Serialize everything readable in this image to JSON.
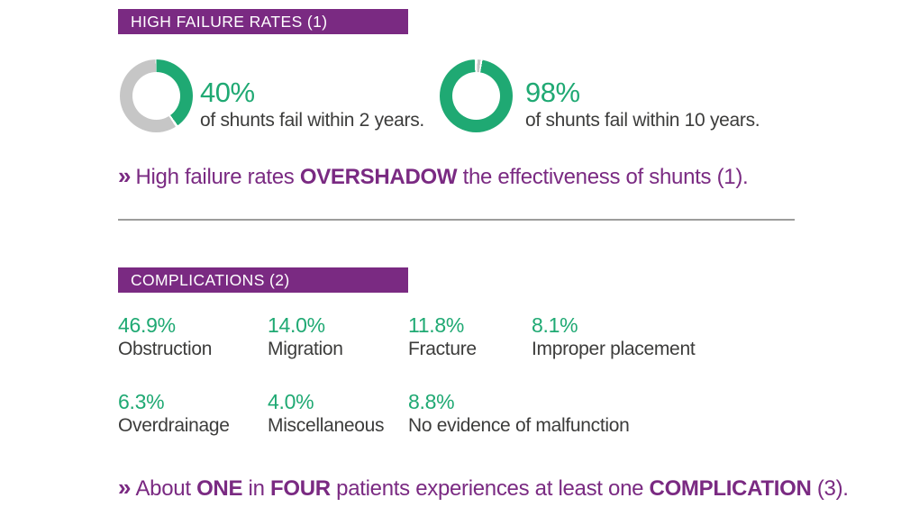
{
  "colors": {
    "purple": "#7A2A82",
    "green": "#1FA973",
    "gray": "#C6C6C6",
    "dark": "#3C3C3B",
    "divider": "#9D9D9C",
    "white": "#FFFFFF"
  },
  "failure_section": {
    "header": "HIGH FAILURE RATES (1)",
    "donuts": [
      {
        "value": 40,
        "percent_label": "40%",
        "caption": "of shunts fail within 2 years."
      },
      {
        "value": 98,
        "percent_label": "98%",
        "caption": "of shunts fail within 10 years."
      }
    ],
    "note": {
      "chevron": "»",
      "segments": [
        {
          "text": "High failure rates ",
          "bold": false
        },
        {
          "text": "OVERSHADOW",
          "bold": true
        },
        {
          "text": " the effectiveness of shunts (1).",
          "bold": false
        }
      ]
    }
  },
  "complications_section": {
    "header": "COMPLICATIONS (2)",
    "stats": [
      {
        "percent": "46.9%",
        "label": "Obstruction"
      },
      {
        "percent": "14.0%",
        "label": "Migration"
      },
      {
        "percent": "11.8%",
        "label": "Fracture"
      },
      {
        "percent": "8.1%",
        "label": "Improper placement"
      },
      {
        "percent": "6.3%",
        "label": "Overdrainage"
      },
      {
        "percent": "4.0%",
        "label": "Miscellaneous"
      },
      {
        "percent": "8.8%",
        "label": "No evidence of malfunction"
      }
    ],
    "note": {
      "chevron": "»",
      "segments": [
        {
          "text": "About ",
          "bold": false
        },
        {
          "text": "ONE",
          "bold": true
        },
        {
          "text": " in ",
          "bold": false
        },
        {
          "text": "FOUR",
          "bold": true
        },
        {
          "text": " patients experiences at least one ",
          "bold": false
        },
        {
          "text": "COMPLICATION",
          "bold": true
        },
        {
          "text": " (3).",
          "bold": false
        }
      ]
    }
  },
  "chart_data": [
    {
      "type": "pie",
      "subtype": "donut",
      "title": "HIGH FAILURE RATES (1)",
      "labels": [
        "shunts failing within 2 years",
        "remaining"
      ],
      "values": [
        40,
        60
      ],
      "colors": [
        "#1FA973",
        "#C6C6C6"
      ],
      "annotation": "40% of shunts fail within 2 years.",
      "start_angle_deg": 0,
      "direction": "clockwise"
    },
    {
      "type": "pie",
      "subtype": "donut",
      "title": "HIGH FAILURE RATES (1)",
      "labels": [
        "shunts failing within 10 years",
        "remaining"
      ],
      "values": [
        98,
        2
      ],
      "colors": [
        "#1FA973",
        "#C6C6C6"
      ],
      "annotation": "98% of shunts fail within 10 years.",
      "start_angle_deg": 0,
      "direction": "clockwise"
    },
    {
      "type": "table",
      "title": "COMPLICATIONS (2)",
      "categories": [
        "Obstruction",
        "Migration",
        "Fracture",
        "Improper placement",
        "Overdrainage",
        "Miscellaneous",
        "No evidence of malfunction"
      ],
      "values": [
        46.9,
        14.0,
        11.8,
        8.1,
        6.3,
        4.0,
        8.8
      ],
      "unit": "%"
    }
  ]
}
